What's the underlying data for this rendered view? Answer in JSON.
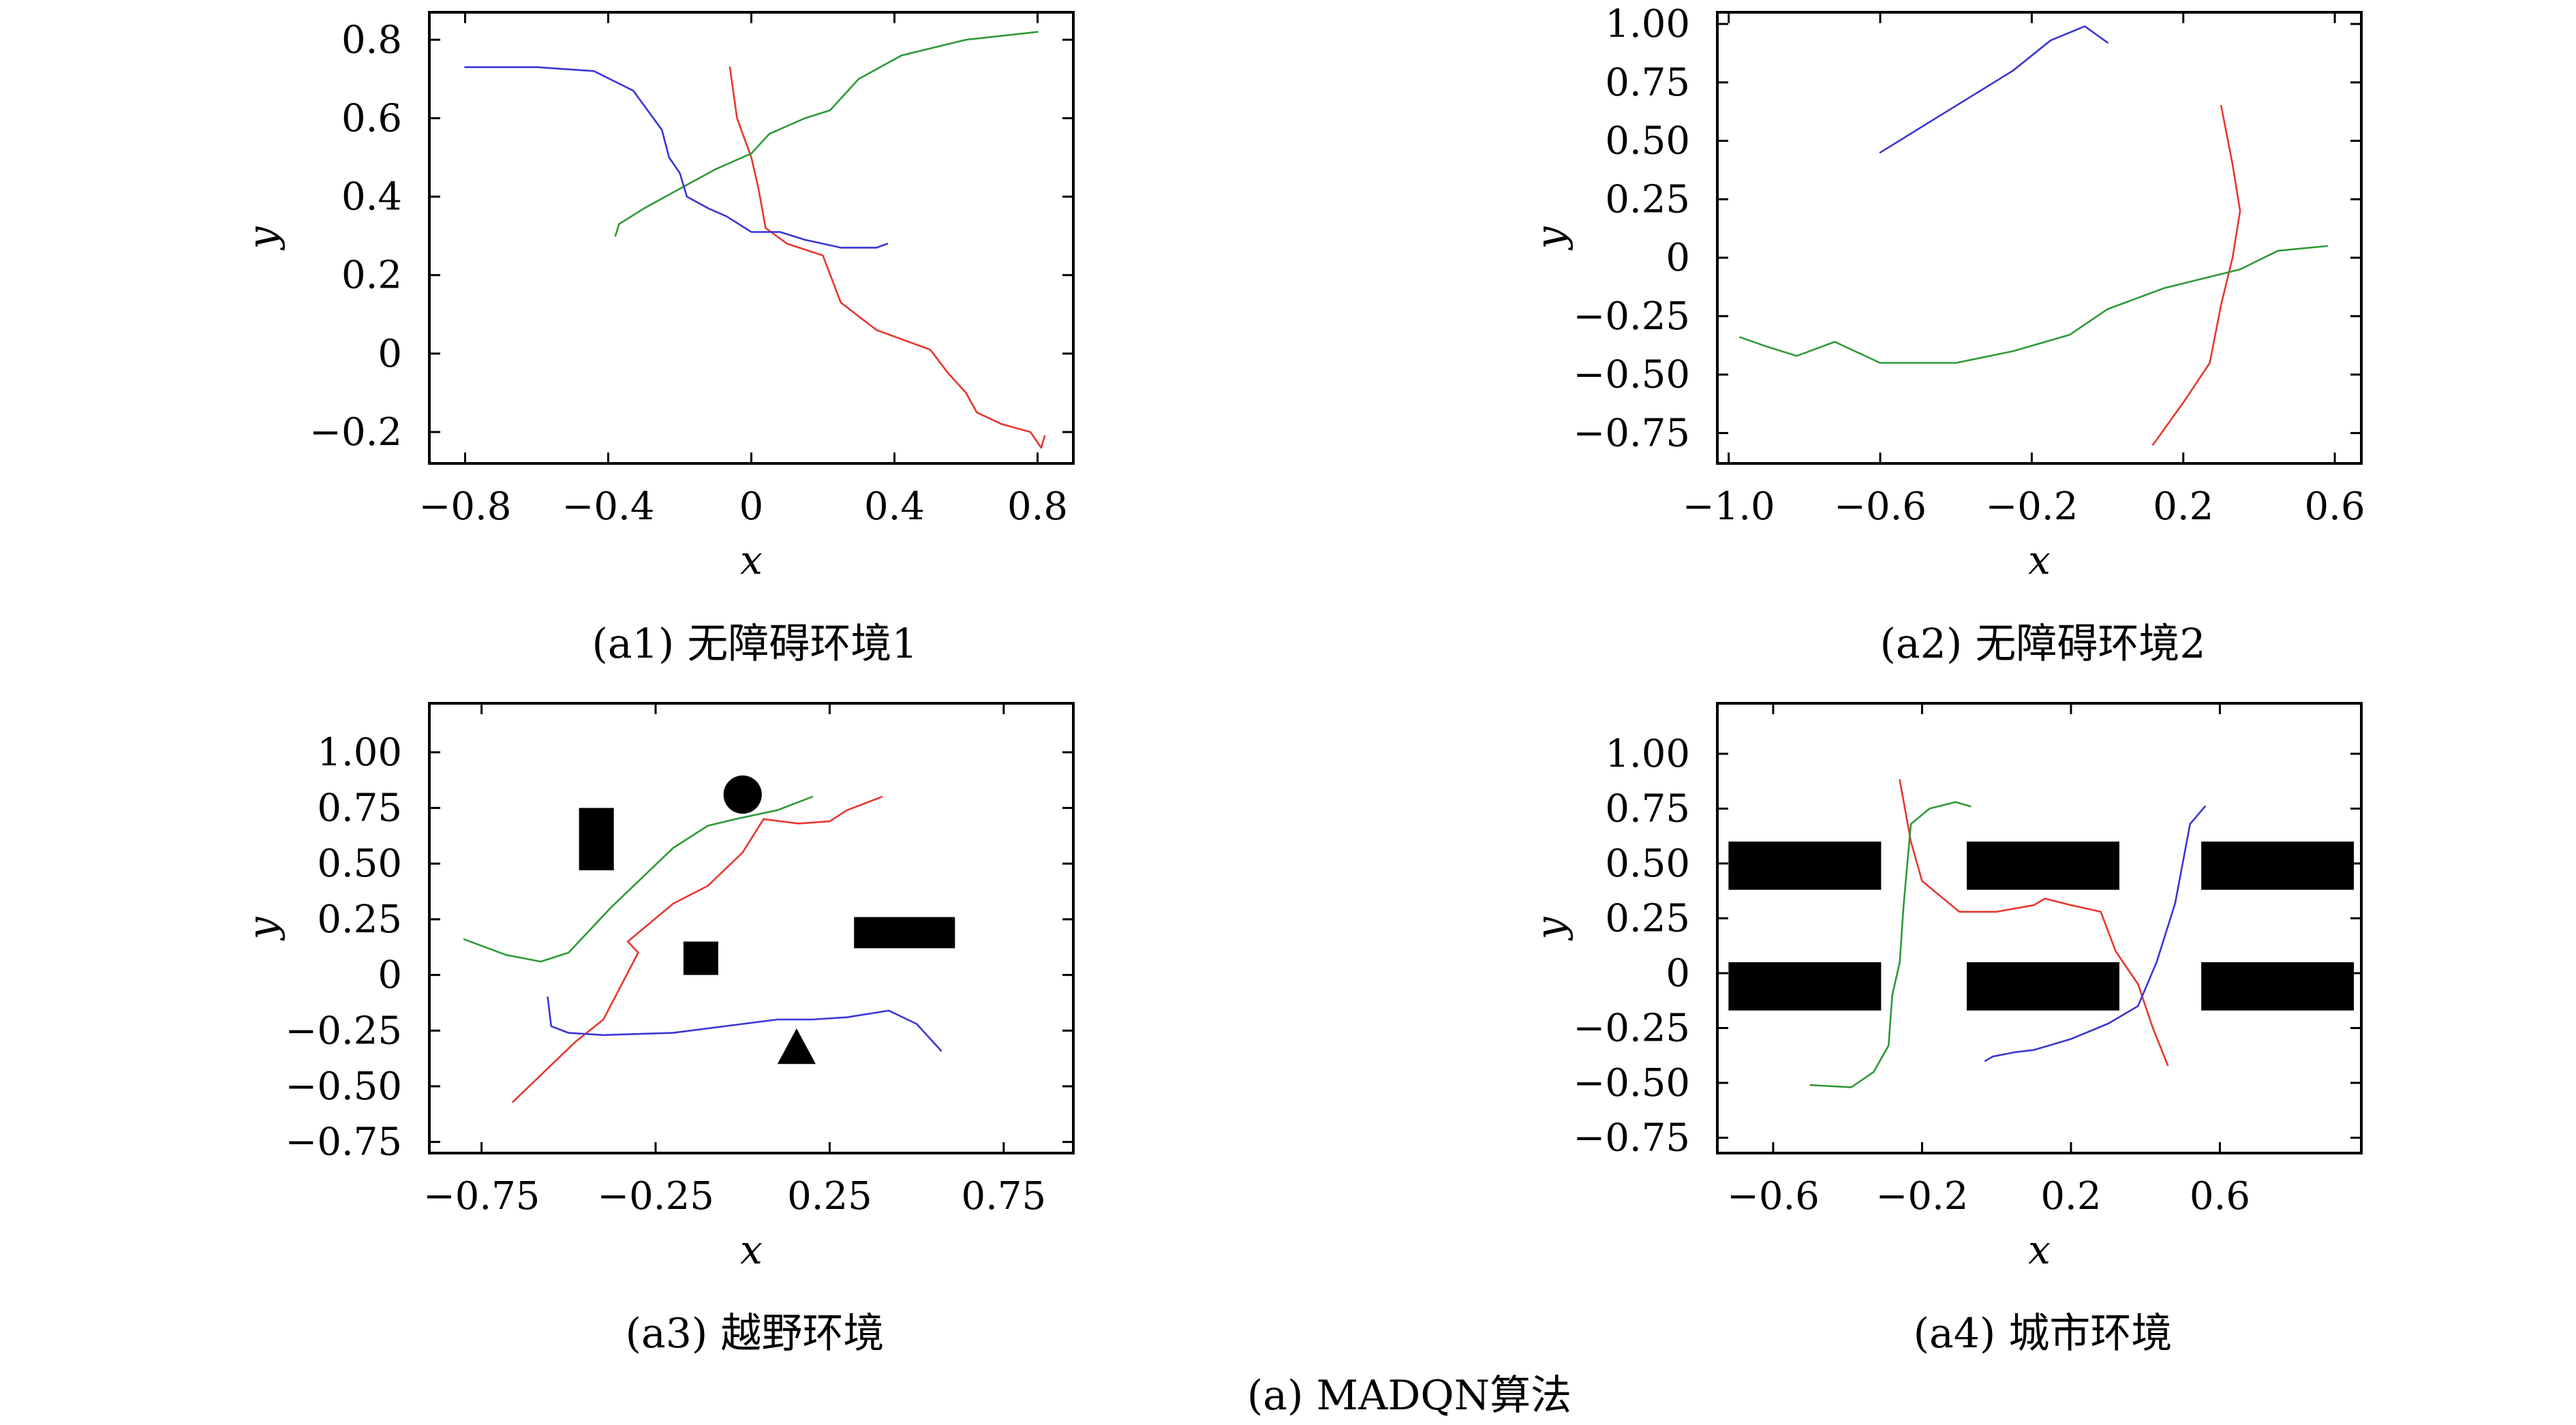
{
  "colors": {
    "red": "#e8362e",
    "green": "#2e9a36",
    "blue": "#3a36d6",
    "obstacle": "#000000"
  },
  "figure_caption": "(a) MADQN算法",
  "chart_data": [
    {
      "id": "a1",
      "type": "line",
      "caption": "(a1) 无障碍环境1",
      "xlabel": "x",
      "ylabel": "y",
      "xlim": [
        -0.9,
        0.9
      ],
      "ylim": [
        -0.28,
        0.87
      ],
      "xticks": [
        -0.8,
        -0.4,
        0,
        0.4,
        0.8
      ],
      "xtick_labels": [
        "−0.8",
        "−0.4",
        "0",
        "0.4",
        "0.8"
      ],
      "yticks": [
        -0.2,
        0,
        0.2,
        0.4,
        0.6,
        0.8
      ],
      "ytick_labels": [
        "−0.2",
        "0",
        "0.2",
        "0.4",
        "0.6",
        "0.8"
      ],
      "obstacles": [],
      "series": [
        {
          "color": "red",
          "points": [
            [
              -0.06,
              0.73
            ],
            [
              -0.04,
              0.6
            ],
            [
              0.0,
              0.5
            ],
            [
              0.02,
              0.42
            ],
            [
              0.04,
              0.32
            ],
            [
              0.1,
              0.28
            ],
            [
              0.2,
              0.25
            ],
            [
              0.25,
              0.13
            ],
            [
              0.35,
              0.06
            ],
            [
              0.5,
              0.01
            ],
            [
              0.55,
              -0.05
            ],
            [
              0.6,
              -0.1
            ],
            [
              0.63,
              -0.15
            ],
            [
              0.7,
              -0.18
            ],
            [
              0.78,
              -0.2
            ],
            [
              0.81,
              -0.24
            ],
            [
              0.82,
              -0.21
            ]
          ]
        },
        {
          "color": "green",
          "points": [
            [
              -0.38,
              0.3
            ],
            [
              -0.37,
              0.33
            ],
            [
              -0.3,
              0.37
            ],
            [
              -0.2,
              0.42
            ],
            [
              -0.1,
              0.47
            ],
            [
              0.0,
              0.51
            ],
            [
              0.05,
              0.56
            ],
            [
              0.15,
              0.6
            ],
            [
              0.22,
              0.62
            ],
            [
              0.3,
              0.7
            ],
            [
              0.42,
              0.76
            ],
            [
              0.6,
              0.8
            ],
            [
              0.8,
              0.82
            ]
          ]
        },
        {
          "color": "blue",
          "points": [
            [
              -0.8,
              0.73
            ],
            [
              -0.6,
              0.73
            ],
            [
              -0.44,
              0.72
            ],
            [
              -0.33,
              0.67
            ],
            [
              -0.25,
              0.57
            ],
            [
              -0.23,
              0.5
            ],
            [
              -0.2,
              0.46
            ],
            [
              -0.18,
              0.4
            ],
            [
              -0.12,
              0.37
            ],
            [
              -0.07,
              0.35
            ],
            [
              0.0,
              0.31
            ],
            [
              0.08,
              0.31
            ],
            [
              0.15,
              0.29
            ],
            [
              0.25,
              0.27
            ],
            [
              0.35,
              0.27
            ],
            [
              0.38,
              0.28
            ]
          ]
        }
      ]
    },
    {
      "id": "a2",
      "type": "line",
      "caption": "(a2) 无障碍环境2",
      "xlabel": "x",
      "ylabel": "y",
      "xlim": [
        -1.03,
        0.67
      ],
      "ylim": [
        -0.88,
        1.05
      ],
      "xticks": [
        -1.0,
        -0.6,
        -0.2,
        0.2,
        0.6
      ],
      "xtick_labels": [
        "−1.0",
        "−0.6",
        "−0.2",
        "0.2",
        "0.6"
      ],
      "yticks": [
        -0.75,
        -0.5,
        -0.25,
        0,
        0.25,
        0.5,
        0.75,
        1.0
      ],
      "ytick_labels": [
        "−0.75",
        "−0.50",
        "−0.25",
        "0",
        "0.25",
        "0.50",
        "0.75",
        "1.00"
      ],
      "obstacles": [],
      "series": [
        {
          "color": "blue",
          "points": [
            [
              -0.6,
              0.45
            ],
            [
              -0.4,
              0.65
            ],
            [
              -0.25,
              0.8
            ],
            [
              -0.15,
              0.93
            ],
            [
              -0.06,
              0.99
            ],
            [
              0.0,
              0.92
            ]
          ]
        },
        {
          "color": "red",
          "points": [
            [
              0.3,
              0.65
            ],
            [
              0.33,
              0.4
            ],
            [
              0.35,
              0.2
            ],
            [
              0.33,
              0.0
            ],
            [
              0.3,
              -0.2
            ],
            [
              0.27,
              -0.45
            ],
            [
              0.2,
              -0.62
            ],
            [
              0.12,
              -0.8
            ]
          ]
        },
        {
          "color": "green",
          "points": [
            [
              -0.97,
              -0.34
            ],
            [
              -0.9,
              -0.38
            ],
            [
              -0.82,
              -0.42
            ],
            [
              -0.72,
              -0.36
            ],
            [
              -0.6,
              -0.45
            ],
            [
              -0.4,
              -0.45
            ],
            [
              -0.25,
              -0.4
            ],
            [
              -0.1,
              -0.33
            ],
            [
              0.0,
              -0.22
            ],
            [
              0.15,
              -0.13
            ],
            [
              0.35,
              -0.05
            ],
            [
              0.45,
              0.03
            ],
            [
              0.58,
              0.05
            ]
          ]
        }
      ]
    },
    {
      "id": "a3",
      "type": "line",
      "caption": "(a3) 越野环境",
      "xlabel": "x",
      "ylabel": "y",
      "xlim": [
        -0.9,
        0.95
      ],
      "ylim": [
        -0.8,
        1.22
      ],
      "xticks": [
        -0.75,
        -0.25,
        0.25,
        0.75
      ],
      "xtick_labels": [
        "−0.75",
        "−0.25",
        "0.25",
        "0.75"
      ],
      "yticks": [
        -0.75,
        -0.5,
        -0.25,
        0,
        0.25,
        0.5,
        0.75,
        1.0
      ],
      "ytick_labels": [
        "−0.75",
        "−0.50",
        "−0.25",
        "0",
        "0.25",
        "0.50",
        "0.75",
        "1.00"
      ],
      "obstacles": [
        {
          "shape": "rect",
          "x0": -0.47,
          "x1": -0.37,
          "y0": 0.47,
          "y1": 0.75
        },
        {
          "shape": "circle",
          "cx": 0.0,
          "cy": 0.81,
          "r": 0.055
        },
        {
          "shape": "rect",
          "x0": -0.17,
          "x1": -0.07,
          "y0": 0.0,
          "y1": 0.15
        },
        {
          "shape": "rect",
          "x0": 0.32,
          "x1": 0.61,
          "y0": 0.12,
          "y1": 0.26
        },
        {
          "shape": "triangle",
          "points": [
            [
              0.1,
              -0.4
            ],
            [
              0.21,
              -0.4
            ],
            [
              0.155,
              -0.24
            ]
          ]
        }
      ],
      "series": [
        {
          "color": "green",
          "points": [
            [
              -0.8,
              0.16
            ],
            [
              -0.68,
              0.09
            ],
            [
              -0.58,
              0.06
            ],
            [
              -0.5,
              0.1
            ],
            [
              -0.38,
              0.3
            ],
            [
              -0.2,
              0.57
            ],
            [
              -0.1,
              0.67
            ],
            [
              -0.02,
              0.7
            ],
            [
              0.1,
              0.74
            ],
            [
              0.2,
              0.8
            ]
          ]
        },
        {
          "color": "red",
          "points": [
            [
              -0.66,
              -0.57
            ],
            [
              -0.58,
              -0.45
            ],
            [
              -0.48,
              -0.3
            ],
            [
              -0.4,
              -0.2
            ],
            [
              -0.3,
              0.1
            ],
            [
              -0.33,
              0.15
            ],
            [
              -0.2,
              0.32
            ],
            [
              -0.1,
              0.4
            ],
            [
              0.0,
              0.55
            ],
            [
              0.06,
              0.7
            ],
            [
              0.16,
              0.68
            ],
            [
              0.25,
              0.69
            ],
            [
              0.3,
              0.74
            ],
            [
              0.4,
              0.8
            ]
          ]
        },
        {
          "color": "blue",
          "points": [
            [
              -0.56,
              -0.1
            ],
            [
              -0.55,
              -0.23
            ],
            [
              -0.5,
              -0.26
            ],
            [
              -0.4,
              -0.27
            ],
            [
              -0.2,
              -0.26
            ],
            [
              0.0,
              -0.22
            ],
            [
              0.1,
              -0.2
            ],
            [
              0.2,
              -0.2
            ],
            [
              0.3,
              -0.19
            ],
            [
              0.42,
              -0.16
            ],
            [
              0.5,
              -0.22
            ],
            [
              0.57,
              -0.34
            ]
          ]
        }
      ]
    },
    {
      "id": "a4",
      "type": "line",
      "caption": "(a4) 城市环境",
      "xlabel": "x",
      "ylabel": "y",
      "xlim": [
        -0.75,
        0.98
      ],
      "ylim": [
        -0.82,
        1.23
      ],
      "xticks": [
        -0.6,
        -0.2,
        0.2,
        0.6
      ],
      "xtick_labels": [
        "−0.6",
        "−0.2",
        "0.2",
        "0.6"
      ],
      "yticks": [
        -0.75,
        -0.5,
        -0.25,
        0,
        0.25,
        0.5,
        0.75,
        1.0
      ],
      "ytick_labels": [
        "−0.75",
        "−0.50",
        "−0.25",
        "0",
        "0.25",
        "0.50",
        "0.75",
        "1.00"
      ],
      "obstacles": [
        {
          "shape": "rect",
          "x0": -0.72,
          "x1": -0.31,
          "y0": 0.38,
          "y1": 0.6
        },
        {
          "shape": "rect",
          "x0": -0.08,
          "x1": 0.33,
          "y0": 0.38,
          "y1": 0.6
        },
        {
          "shape": "rect",
          "x0": 0.55,
          "x1": 0.96,
          "y0": 0.38,
          "y1": 0.6
        },
        {
          "shape": "rect",
          "x0": -0.72,
          "x1": -0.31,
          "y0": -0.17,
          "y1": 0.05
        },
        {
          "shape": "rect",
          "x0": -0.08,
          "x1": 0.33,
          "y0": -0.17,
          "y1": 0.05
        },
        {
          "shape": "rect",
          "x0": 0.55,
          "x1": 0.96,
          "y0": -0.17,
          "y1": 0.05
        }
      ],
      "series": [
        {
          "color": "red",
          "points": [
            [
              -0.26,
              0.88
            ],
            [
              -0.23,
              0.6
            ],
            [
              -0.2,
              0.42
            ],
            [
              -0.1,
              0.28
            ],
            [
              0.0,
              0.28
            ],
            [
              0.1,
              0.31
            ],
            [
              0.13,
              0.34
            ],
            [
              0.2,
              0.31
            ],
            [
              0.28,
              0.28
            ],
            [
              0.32,
              0.1
            ],
            [
              0.38,
              -0.05
            ],
            [
              0.42,
              -0.25
            ],
            [
              0.46,
              -0.42
            ]
          ]
        },
        {
          "color": "green",
          "points": [
            [
              -0.5,
              -0.51
            ],
            [
              -0.39,
              -0.52
            ],
            [
              -0.33,
              -0.45
            ],
            [
              -0.29,
              -0.33
            ],
            [
              -0.28,
              -0.1
            ],
            [
              -0.26,
              0.05
            ],
            [
              -0.25,
              0.3
            ],
            [
              -0.23,
              0.68
            ],
            [
              -0.18,
              0.75
            ],
            [
              -0.11,
              0.78
            ],
            [
              -0.07,
              0.76
            ]
          ]
        },
        {
          "color": "blue",
          "points": [
            [
              -0.03,
              -0.4
            ],
            [
              -0.01,
              -0.38
            ],
            [
              0.05,
              -0.36
            ],
            [
              0.1,
              -0.35
            ],
            [
              0.2,
              -0.3
            ],
            [
              0.3,
              -0.23
            ],
            [
              0.38,
              -0.15
            ],
            [
              0.43,
              0.05
            ],
            [
              0.48,
              0.32
            ],
            [
              0.5,
              0.5
            ],
            [
              0.52,
              0.68
            ],
            [
              0.56,
              0.76
            ]
          ]
        }
      ]
    }
  ]
}
